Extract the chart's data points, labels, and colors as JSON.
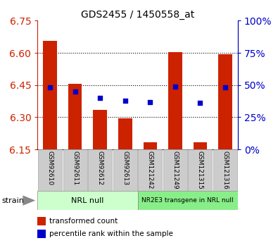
{
  "title": "GDS2455 / 1450558_at",
  "categories": [
    "GSM92610",
    "GSM92611",
    "GSM92612",
    "GSM92613",
    "GSM121242",
    "GSM121249",
    "GSM121315",
    "GSM121316"
  ],
  "bar_values": [
    6.655,
    6.455,
    6.335,
    6.295,
    6.185,
    6.605,
    6.185,
    6.595
  ],
  "dot_values": [
    48,
    45,
    40,
    38,
    37,
    49,
    36,
    48
  ],
  "ylim_left": [
    6.15,
    6.75
  ],
  "ylim_right": [
    0,
    100
  ],
  "yticks_left": [
    6.15,
    6.3,
    6.45,
    6.6,
    6.75
  ],
  "yticks_right": [
    0,
    25,
    50,
    75,
    100
  ],
  "bar_color": "#cc2200",
  "dot_color": "#0000cc",
  "bar_base": 6.15,
  "groups": [
    {
      "label": "NRL null",
      "start": 0,
      "end": 4,
      "color": "#ccffcc"
    },
    {
      "label": "NR2E3 transgene in NRL null",
      "start": 4,
      "end": 8,
      "color": "#88ee88"
    }
  ],
  "legend_items": [
    {
      "label": "transformed count",
      "color": "#cc2200"
    },
    {
      "label": "percentile rank within the sample",
      "color": "#0000cc"
    }
  ],
  "strain_label": "strain",
  "tick_label_color_left": "#cc2200",
  "tick_label_color_right": "#0000cc",
  "bar_width": 0.55,
  "grid_lines_at": [
    6.3,
    6.45,
    6.6
  ],
  "box_color": "#cccccc",
  "box_edge_color": "#aaaaaa"
}
